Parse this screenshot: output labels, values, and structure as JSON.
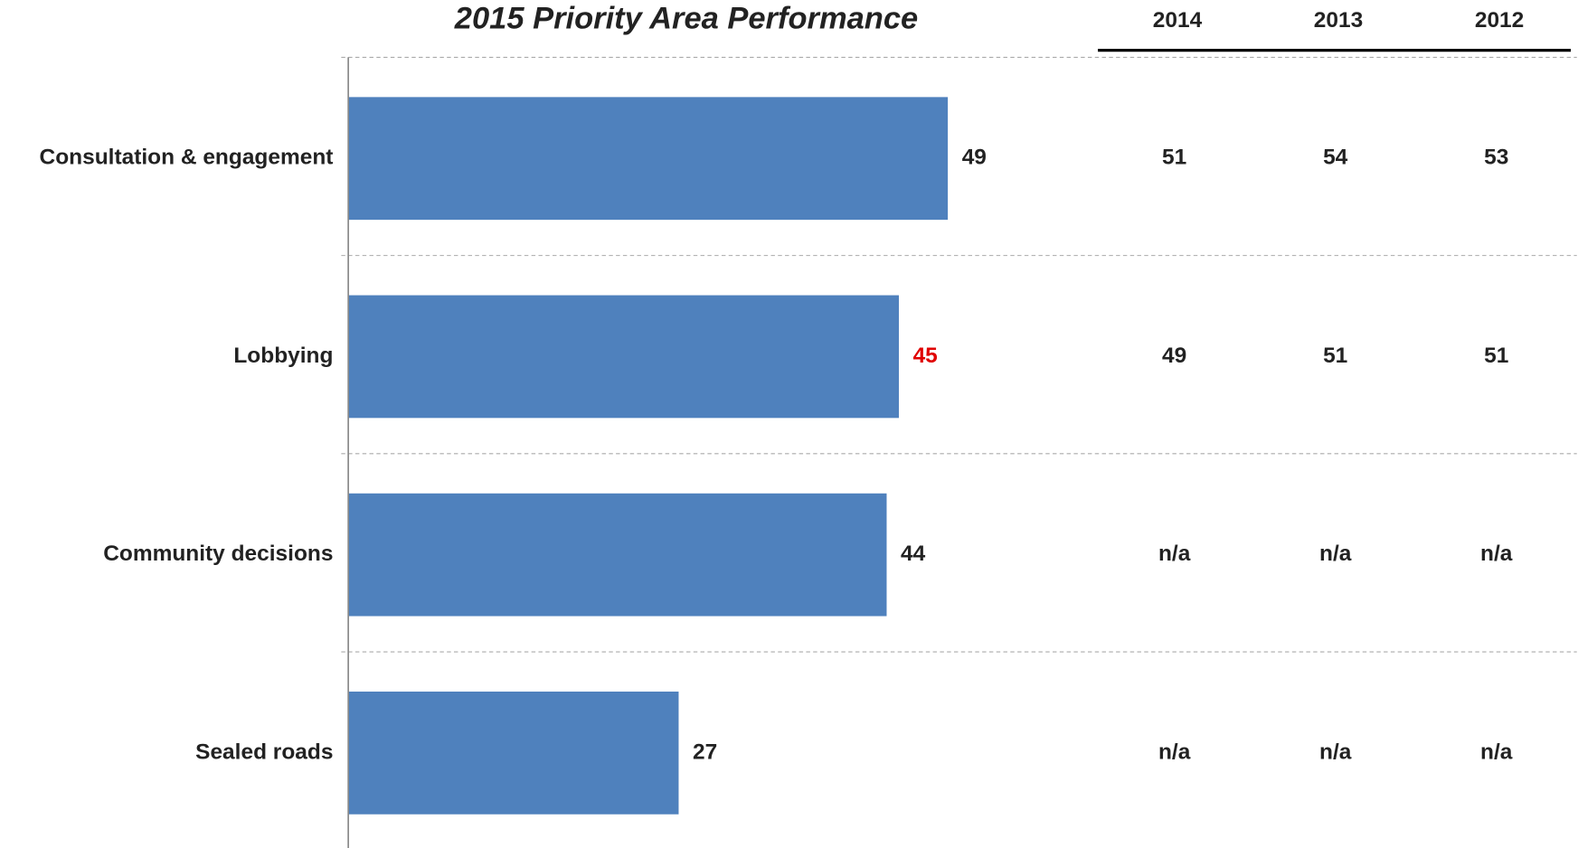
{
  "chart_data": {
    "type": "bar",
    "orientation": "horizontal",
    "title": "2015 Priority Area Performance",
    "categories": [
      "Consultation & engagement",
      "Lobbying",
      "Community decisions",
      "Sealed roads"
    ],
    "values": [
      49,
      45,
      44,
      27
    ],
    "color": "#4f81bd",
    "label_colors": [
      "#222222",
      "#e00000",
      "#222222",
      "#222222"
    ],
    "xlim": [
      0,
      100
    ]
  },
  "table": {
    "columns": [
      "2014",
      "2013",
      "2012"
    ],
    "rows": [
      [
        51,
        54,
        53
      ],
      [
        49,
        51,
        51
      ],
      [
        "n/a",
        "n/a",
        "n/a"
      ],
      [
        "n/a",
        "n/a",
        "n/a"
      ]
    ]
  }
}
